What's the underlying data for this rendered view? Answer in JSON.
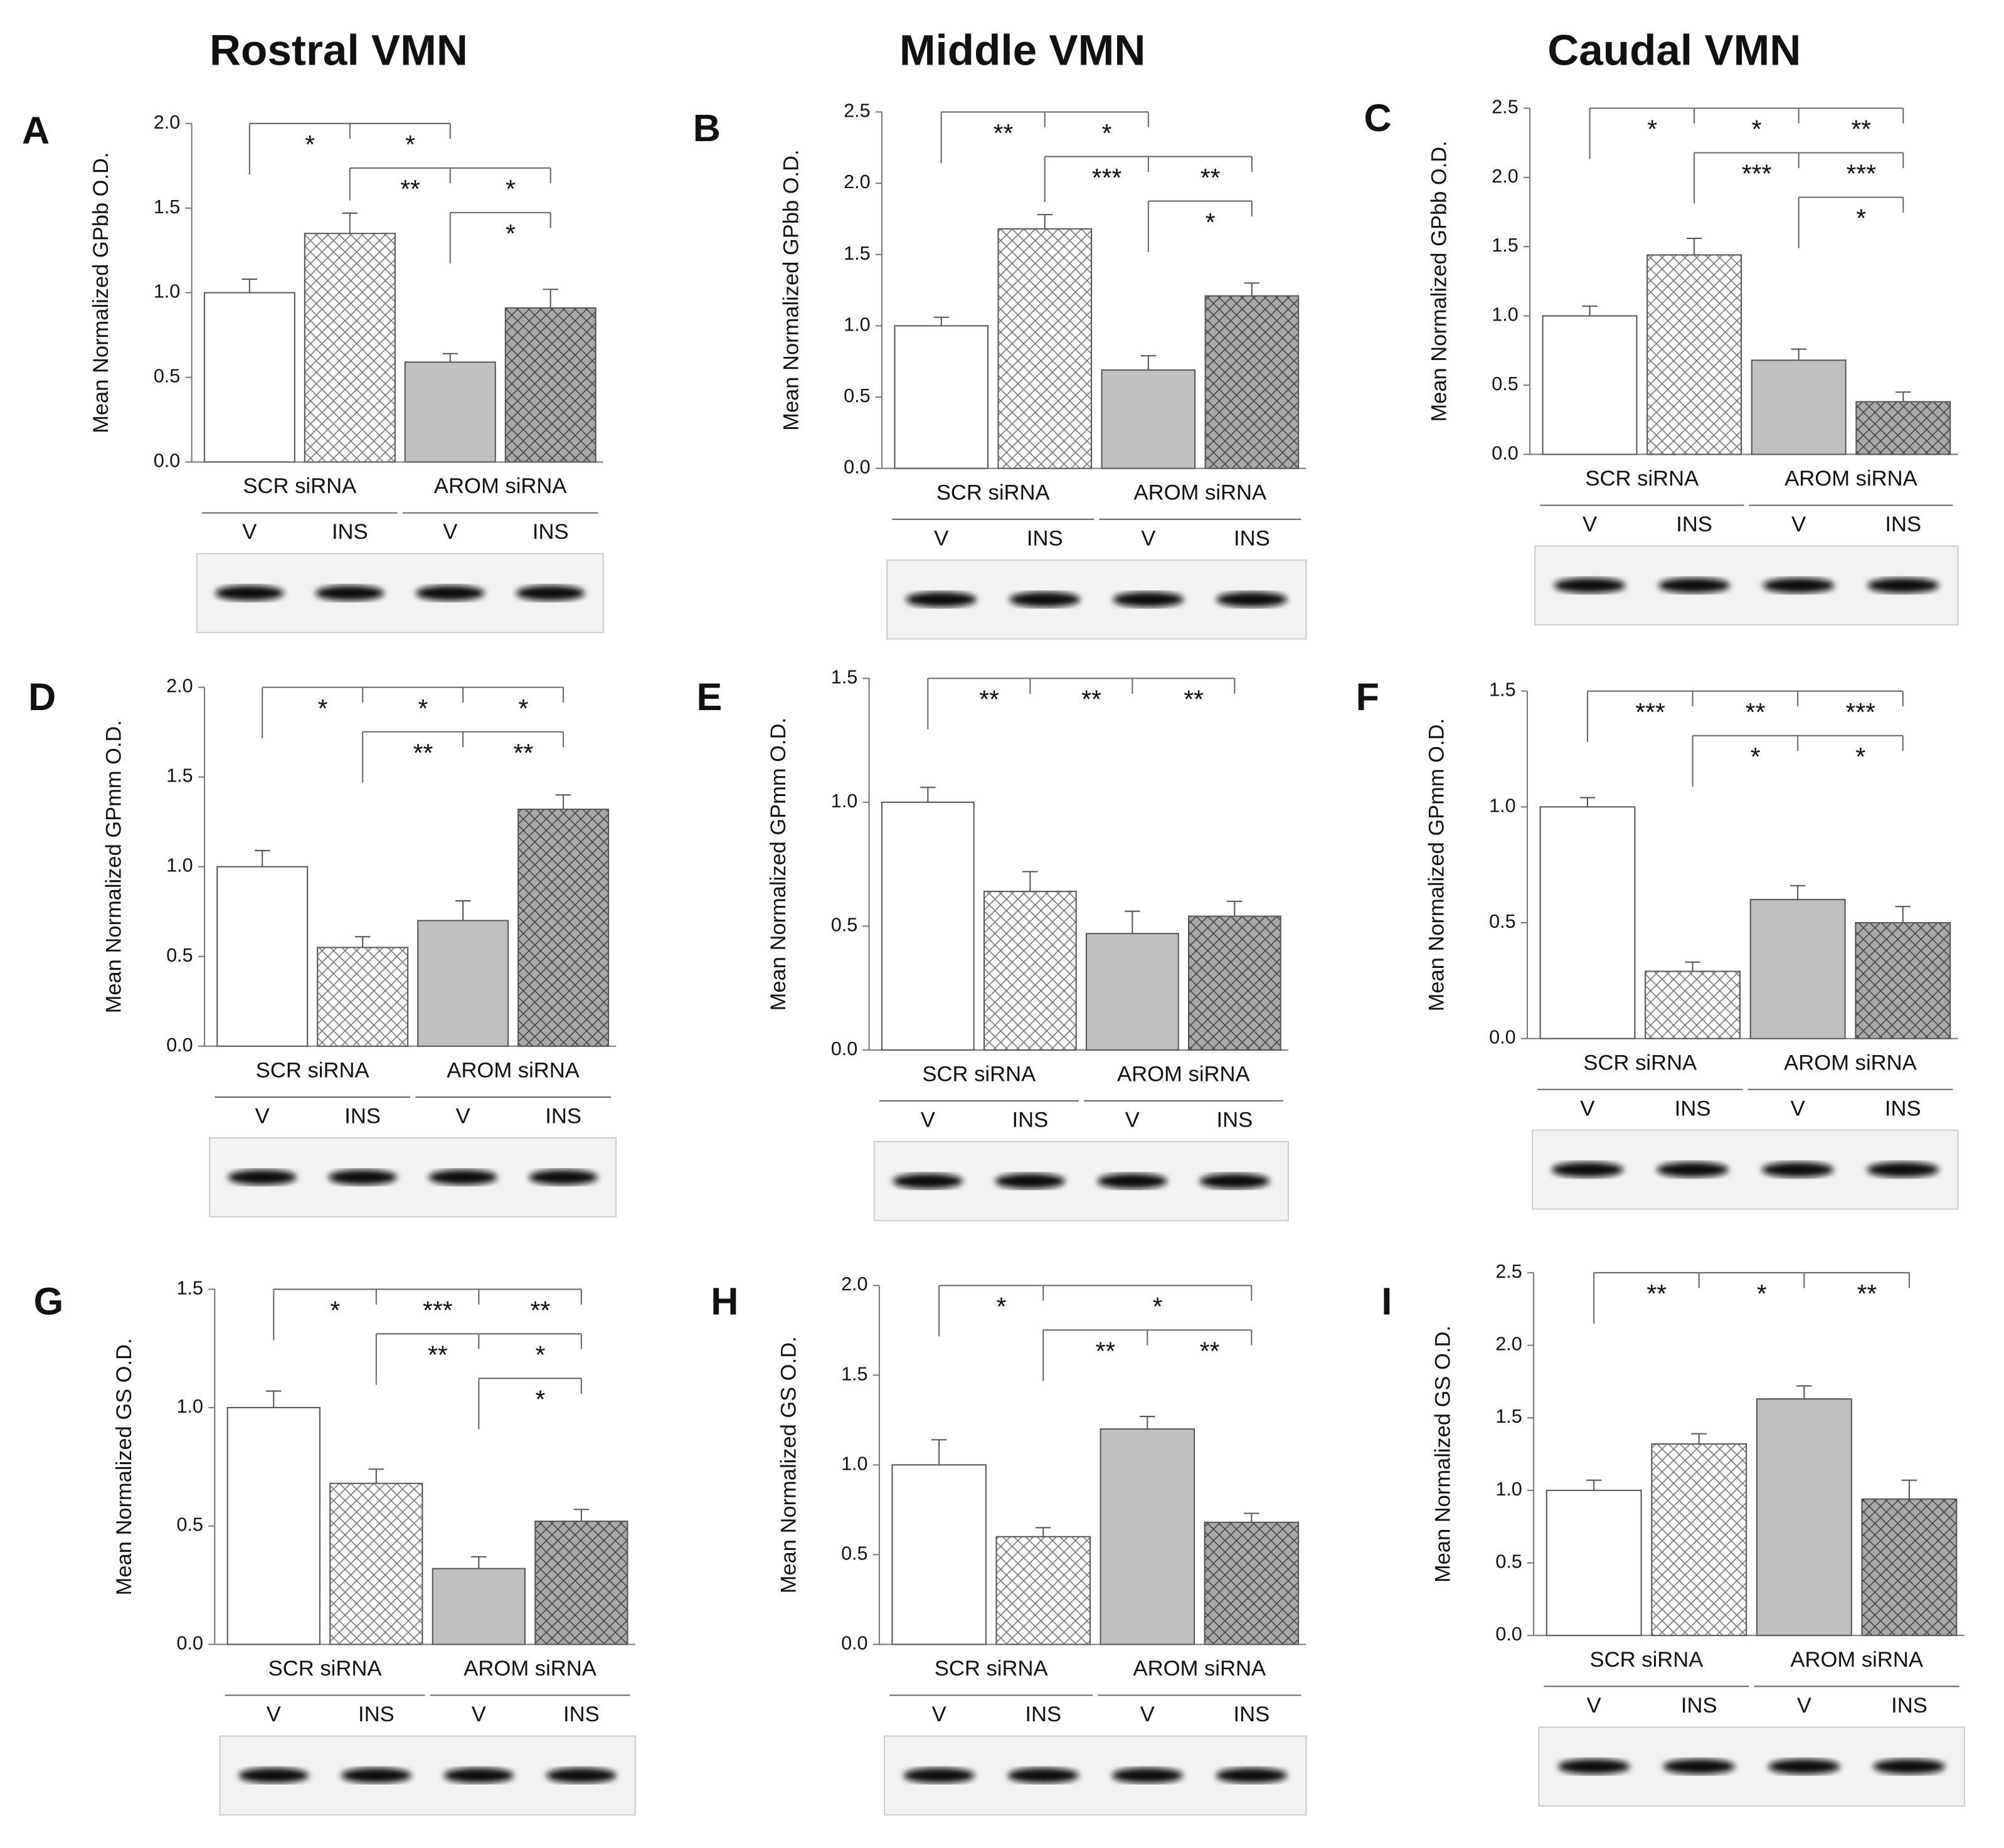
{
  "columns": [
    "Rostral VMN",
    "Middle VMN",
    "Caudal VMN"
  ],
  "chart_data": [
    {
      "type": "bar",
      "panel": "A",
      "ylabel": "Mean Normalized GPbb O.D.",
      "groups": [
        "SCR siRNA",
        "AROM siRNA"
      ],
      "categories": [
        "V",
        "INS",
        "V",
        "INS"
      ],
      "values": [
        1.0,
        1.35,
        0.59,
        0.91
      ],
      "errors": [
        0.08,
        0.12,
        0.05,
        0.11
      ],
      "colors": [
        "#ffffff",
        "#ffffff",
        "#c0c0c0",
        "#a8a8a8"
      ],
      "hatch": [
        false,
        true,
        false,
        true
      ],
      "ylim": [
        0,
        2
      ],
      "yticks": [
        {
          "value": 0,
          "label": "0.0"
        },
        {
          "value": 0.5,
          "label": "0.5"
        },
        {
          "value": 1,
          "label": "1.0"
        },
        {
          "value": 1.5,
          "label": "1.5"
        },
        {
          "value": 2,
          "label": "2.0"
        }
      ],
      "brackets": [
        {
          "from": 0,
          "to": [
            1,
            2
          ],
          "labels": [
            "*",
            "*"
          ]
        },
        {
          "from": 1,
          "to": [
            2,
            3
          ],
          "labels": [
            "**",
            "*"
          ]
        },
        {
          "from": 2,
          "to": [
            3
          ],
          "labels": [
            "*"
          ]
        }
      ]
    },
    {
      "type": "bar",
      "panel": "B",
      "ylabel": "Mean Normalized GPbb O.D.",
      "groups": [
        "SCR siRNA",
        "AROM siRNA"
      ],
      "categories": [
        "V",
        "INS",
        "V",
        "INS"
      ],
      "values": [
        1.0,
        1.68,
        0.69,
        1.21
      ],
      "errors": [
        0.06,
        0.1,
        0.1,
        0.09
      ],
      "colors": [
        "#ffffff",
        "#ffffff",
        "#c0c0c0",
        "#a8a8a8"
      ],
      "hatch": [
        false,
        true,
        false,
        true
      ],
      "ylim": [
        0,
        2.5
      ],
      "yticks": [
        {
          "value": 0,
          "label": "0.0"
        },
        {
          "value": 0.5,
          "label": "0.5"
        },
        {
          "value": 1,
          "label": "1.0"
        },
        {
          "value": 1.5,
          "label": "1.5"
        },
        {
          "value": 2,
          "label": "2.0"
        },
        2.5
      ],
      "brackets": [
        {
          "from": 0,
          "to": [
            1,
            2
          ],
          "labels": [
            "**",
            "*"
          ]
        },
        {
          "from": 1,
          "to": [
            2,
            3
          ],
          "labels": [
            "***",
            "**"
          ]
        },
        {
          "from": 2,
          "to": [
            3
          ],
          "labels": [
            "*"
          ]
        }
      ]
    },
    {
      "type": "bar",
      "panel": "C",
      "ylabel": "Mean Normalized GPbb O.D.",
      "groups": [
        "SCR siRNA",
        "AROM siRNA"
      ],
      "categories": [
        "V",
        "INS",
        "V",
        "INS"
      ],
      "values": [
        1.0,
        1.44,
        0.68,
        0.38
      ],
      "errors": [
        0.07,
        0.12,
        0.08,
        0.07
      ],
      "colors": [
        "#ffffff",
        "#ffffff",
        "#c0c0c0",
        "#a8a8a8"
      ],
      "hatch": [
        false,
        true,
        false,
        true
      ],
      "ylim": [
        0,
        2.5
      ],
      "yticks": [
        {
          "value": 0,
          "label": "0.0"
        },
        {
          "value": 0.5,
          "label": "0.5"
        },
        {
          "value": 1,
          "label": "1.0"
        },
        {
          "value": 1.5,
          "label": "1.5"
        },
        {
          "value": 2,
          "label": "2.0"
        },
        2.5
      ],
      "brackets": [
        {
          "from": 0,
          "to": [
            1,
            2,
            3
          ],
          "labels": [
            "*",
            "*",
            "**"
          ]
        },
        {
          "from": 1,
          "to": [
            2,
            3
          ],
          "labels": [
            "***",
            "***"
          ]
        },
        {
          "from": 2,
          "to": [
            3
          ],
          "labels": [
            "*"
          ]
        }
      ]
    },
    {
      "type": "bar",
      "panel": "D",
      "ylabel": "Mean Normalized GPmm O.D.",
      "groups": [
        "SCR siRNA",
        "AROM siRNA"
      ],
      "categories": [
        "V",
        "INS",
        "V",
        "INS"
      ],
      "values": [
        1.0,
        0.55,
        0.7,
        1.32
      ],
      "errors": [
        0.09,
        0.06,
        0.11,
        0.08
      ],
      "colors": [
        "#ffffff",
        "#ffffff",
        "#c0c0c0",
        "#a8a8a8"
      ],
      "hatch": [
        false,
        true,
        false,
        true
      ],
      "ylim": [
        0,
        2
      ],
      "yticks": [
        {
          "value": 0,
          "label": "0.0"
        },
        {
          "value": 0.5,
          "label": "0.5"
        },
        {
          "value": 1,
          "label": "1.0"
        },
        {
          "value": 1.5,
          "label": "1.5"
        },
        {
          "value": 2,
          "label": "2.0"
        }
      ],
      "brackets": [
        {
          "from": 0,
          "to": [
            1,
            2,
            3
          ],
          "labels": [
            "*",
            "*",
            "*"
          ]
        },
        {
          "from": 1,
          "to": [
            2,
            3
          ],
          "labels": [
            "**",
            "**"
          ]
        }
      ]
    },
    {
      "type": "bar",
      "panel": "E",
      "ylabel": "Mean Normalized GPmm O.D.",
      "groups": [
        "SCR siRNA",
        "AROM siRNA"
      ],
      "categories": [
        "V",
        "INS",
        "V",
        "INS"
      ],
      "values": [
        1.0,
        0.64,
        0.47,
        0.54
      ],
      "errors": [
        0.06,
        0.08,
        0.09,
        0.06
      ],
      "colors": [
        "#ffffff",
        "#ffffff",
        "#c0c0c0",
        "#a8a8a8"
      ],
      "hatch": [
        false,
        true,
        false,
        true
      ],
      "ylim": [
        0,
        1.5
      ],
      "yticks": [
        {
          "value": 0,
          "label": "0.0"
        },
        {
          "value": 0.5,
          "label": "0.5"
        },
        {
          "value": 1,
          "label": "1.0"
        },
        {
          "value": 1.5,
          "label": "1.5"
        }
      ],
      "brackets": [
        {
          "from": 0,
          "to": [
            1,
            2,
            3
          ],
          "labels": [
            "**",
            "**",
            "**"
          ]
        }
      ]
    },
    {
      "type": "bar",
      "panel": "F",
      "ylabel": "Mean Normalized GPmm O.D.",
      "groups": [
        "SCR siRNA",
        "AROM siRNA"
      ],
      "categories": [
        "V",
        "INS",
        "V",
        "INS"
      ],
      "values": [
        1.0,
        0.29,
        0.6,
        0.5
      ],
      "errors": [
        0.04,
        0.04,
        0.06,
        0.07
      ],
      "colors": [
        "#ffffff",
        "#ffffff",
        "#c0c0c0",
        "#a8a8a8"
      ],
      "hatch": [
        false,
        true,
        false,
        true
      ],
      "ylim": [
        0,
        1.5
      ],
      "yticks": [
        {
          "value": 0,
          "label": "0.0"
        },
        {
          "value": 0.5,
          "label": "0.5"
        },
        {
          "value": 1,
          "label": "1.0"
        },
        {
          "value": 1.5,
          "label": "1.5"
        }
      ],
      "brackets": [
        {
          "from": 0,
          "to": [
            1,
            2,
            3
          ],
          "labels": [
            "***",
            "**",
            "***"
          ]
        },
        {
          "from": 1,
          "to": [
            2,
            3
          ],
          "labels": [
            "*",
            "*"
          ]
        }
      ]
    },
    {
      "type": "bar",
      "panel": "G",
      "ylabel": "Mean Normalized GS O.D.",
      "groups": [
        "SCR siRNA",
        "AROM siRNA"
      ],
      "categories": [
        "V",
        "INS",
        "V",
        "INS"
      ],
      "values": [
        1.0,
        0.68,
        0.32,
        0.52
      ],
      "errors": [
        0.07,
        0.06,
        0.05,
        0.05
      ],
      "colors": [
        "#ffffff",
        "#ffffff",
        "#c0c0c0",
        "#a8a8a8"
      ],
      "hatch": [
        false,
        true,
        false,
        true
      ],
      "ylim": [
        0,
        1.5
      ],
      "yticks": [
        {
          "value": 0,
          "label": "0.0"
        },
        {
          "value": 0.5,
          "label": "0.5"
        },
        {
          "value": 1,
          "label": "1.0"
        },
        {
          "value": 1.5,
          "label": "1.5"
        }
      ],
      "brackets": [
        {
          "from": 0,
          "to": [
            1,
            2,
            3
          ],
          "labels": [
            "*",
            "***",
            "**"
          ]
        },
        {
          "from": 1,
          "to": [
            2,
            3
          ],
          "labels": [
            "**",
            "*"
          ]
        },
        {
          "from": 2,
          "to": [
            3
          ],
          "labels": [
            "*"
          ]
        }
      ]
    },
    {
      "type": "bar",
      "panel": "H",
      "ylabel": "Mean Normalized GS O.D.",
      "groups": [
        "SCR siRNA",
        "AROM siRNA"
      ],
      "categories": [
        "V",
        "INS",
        "V",
        "INS"
      ],
      "values": [
        1.0,
        0.6,
        1.2,
        0.68
      ],
      "errors": [
        0.14,
        0.05,
        0.07,
        0.05
      ],
      "colors": [
        "#ffffff",
        "#ffffff",
        "#c0c0c0",
        "#a8a8a8"
      ],
      "hatch": [
        false,
        true,
        false,
        true
      ],
      "ylim": [
        0,
        2
      ],
      "yticks": [
        {
          "value": 0,
          "label": "0.0"
        },
        {
          "value": 0.5,
          "label": "0.5"
        },
        {
          "value": 1,
          "label": "1.0"
        },
        {
          "value": 1.5,
          "label": "1.5"
        },
        {
          "value": 2,
          "label": "2.0"
        }
      ],
      "brackets": [
        {
          "from": 0,
          "to": [
            1,
            3
          ],
          "labels": [
            "*",
            "*"
          ]
        },
        {
          "from": 1,
          "to": [
            2,
            3
          ],
          "labels": [
            "**",
            "**"
          ]
        }
      ]
    },
    {
      "type": "bar",
      "panel": "I",
      "ylabel": "Mean Normalized GS O.D.",
      "groups": [
        "SCR siRNA",
        "AROM siRNA"
      ],
      "categories": [
        "V",
        "INS",
        "V",
        "INS"
      ],
      "values": [
        1.0,
        1.32,
        1.63,
        0.94
      ],
      "errors": [
        0.07,
        0.07,
        0.09,
        0.13
      ],
      "colors": [
        "#ffffff",
        "#ffffff",
        "#c0c0c0",
        "#a8a8a8"
      ],
      "hatch": [
        false,
        true,
        false,
        true
      ],
      "ylim": [
        0,
        2.5
      ],
      "yticks": [
        {
          "value": 0,
          "label": "0.0"
        },
        {
          "value": 0.5,
          "label": "0.5"
        },
        {
          "value": 1,
          "label": "1.0"
        },
        {
          "value": 1.5,
          "label": "1.5"
        },
        {
          "value": 2,
          "label": "2.0"
        },
        2.5
      ],
      "brackets": [
        {
          "from": 0,
          "to": [
            1,
            2,
            3
          ],
          "labels": [
            "**",
            "*",
            "**"
          ]
        }
      ]
    }
  ]
}
